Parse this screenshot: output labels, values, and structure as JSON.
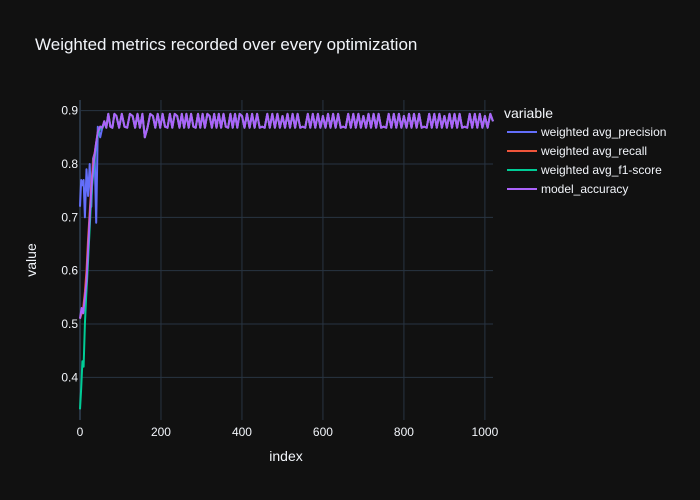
{
  "chart_data": {
    "type": "line",
    "title": "Weighted metrics recorded over every optimization",
    "xlabel": "index",
    "ylabel": "value",
    "xlim": [
      0,
      1020
    ],
    "ylim": [
      0.32,
      0.92
    ],
    "xticks": [
      0,
      200,
      400,
      600,
      800,
      1000
    ],
    "yticks": [
      0.4,
      0.5,
      0.6,
      0.7,
      0.8,
      0.9
    ],
    "grid": true,
    "legend": {
      "title": "variable",
      "position": "top-right (outside plot)"
    },
    "series": [
      {
        "name": "weighted avg_precision",
        "color": "#636efa",
        "points": [
          [
            0,
            0.72
          ],
          [
            3,
            0.77
          ],
          [
            6,
            0.76
          ],
          [
            9,
            0.77
          ],
          [
            12,
            0.7
          ],
          [
            16,
            0.79
          ],
          [
            20,
            0.74
          ],
          [
            24,
            0.8
          ],
          [
            28,
            0.72
          ],
          [
            32,
            0.81
          ],
          [
            36,
            0.82
          ],
          [
            40,
            0.69
          ],
          [
            44,
            0.87
          ],
          [
            50,
            0.85
          ],
          [
            60,
            0.88
          ],
          [
            75,
            0.87
          ],
          [
            90,
            0.89
          ],
          [
            110,
            0.87
          ],
          [
            130,
            0.89
          ],
          [
            160,
            0.85
          ],
          [
            180,
            0.89
          ],
          [
            210,
            0.87
          ],
          [
            240,
            0.89
          ],
          [
            280,
            0.87
          ],
          [
            320,
            0.89
          ],
          [
            360,
            0.87
          ],
          [
            400,
            0.89
          ],
          [
            450,
            0.87
          ],
          [
            500,
            0.89
          ],
          [
            550,
            0.87
          ],
          [
            600,
            0.89
          ],
          [
            650,
            0.87
          ],
          [
            700,
            0.89
          ],
          [
            750,
            0.87
          ],
          [
            800,
            0.89
          ],
          [
            850,
            0.87
          ],
          [
            900,
            0.89
          ],
          [
            950,
            0.87
          ],
          [
            1000,
            0.89
          ],
          [
            1020,
            0.88
          ]
        ]
      },
      {
        "name": "weighted avg_recall",
        "color": "#ef553b",
        "points": [
          [
            0,
            0.51
          ],
          [
            4,
            0.52
          ],
          [
            8,
            0.53
          ],
          [
            12,
            0.56
          ],
          [
            16,
            0.6
          ],
          [
            20,
            0.66
          ],
          [
            24,
            0.71
          ],
          [
            28,
            0.76
          ],
          [
            32,
            0.8
          ],
          [
            38,
            0.83
          ],
          [
            44,
            0.86
          ],
          [
            50,
            0.87
          ],
          [
            60,
            0.88
          ],
          [
            75,
            0.87
          ],
          [
            90,
            0.89
          ],
          [
            110,
            0.87
          ],
          [
            130,
            0.89
          ],
          [
            160,
            0.85
          ],
          [
            180,
            0.89
          ],
          [
            210,
            0.87
          ],
          [
            240,
            0.89
          ],
          [
            280,
            0.87
          ],
          [
            320,
            0.89
          ],
          [
            360,
            0.87
          ],
          [
            400,
            0.89
          ],
          [
            450,
            0.87
          ],
          [
            500,
            0.89
          ],
          [
            550,
            0.87
          ],
          [
            600,
            0.89
          ],
          [
            650,
            0.87
          ],
          [
            700,
            0.89
          ],
          [
            750,
            0.87
          ],
          [
            800,
            0.89
          ],
          [
            850,
            0.87
          ],
          [
            900,
            0.89
          ],
          [
            950,
            0.87
          ],
          [
            1000,
            0.89
          ],
          [
            1020,
            0.88
          ]
        ]
      },
      {
        "name": "weighted avg_f1-score",
        "color": "#00cc96",
        "points": [
          [
            0,
            0.34
          ],
          [
            3,
            0.38
          ],
          [
            6,
            0.43
          ],
          [
            9,
            0.42
          ],
          [
            12,
            0.5
          ],
          [
            15,
            0.55
          ],
          [
            18,
            0.59
          ],
          [
            22,
            0.65
          ],
          [
            26,
            0.71
          ],
          [
            30,
            0.76
          ],
          [
            35,
            0.8
          ],
          [
            40,
            0.84
          ],
          [
            46,
            0.86
          ],
          [
            52,
            0.87
          ],
          [
            60,
            0.88
          ],
          [
            75,
            0.87
          ],
          [
            90,
            0.89
          ],
          [
            110,
            0.87
          ],
          [
            130,
            0.89
          ],
          [
            160,
            0.85
          ],
          [
            180,
            0.89
          ],
          [
            210,
            0.87
          ],
          [
            240,
            0.89
          ],
          [
            280,
            0.87
          ],
          [
            320,
            0.89
          ],
          [
            360,
            0.87
          ],
          [
            400,
            0.89
          ],
          [
            450,
            0.87
          ],
          [
            500,
            0.89
          ],
          [
            550,
            0.87
          ],
          [
            600,
            0.89
          ],
          [
            650,
            0.87
          ],
          [
            700,
            0.89
          ],
          [
            750,
            0.87
          ],
          [
            800,
            0.89
          ],
          [
            850,
            0.87
          ],
          [
            900,
            0.89
          ],
          [
            950,
            0.87
          ],
          [
            1000,
            0.89
          ],
          [
            1020,
            0.88
          ]
        ]
      },
      {
        "name": "model_accuracy",
        "color": "#ab63fa",
        "points": [
          [
            0,
            0.51
          ],
          [
            4,
            0.53
          ],
          [
            8,
            0.52
          ],
          [
            12,
            0.55
          ],
          [
            16,
            0.58
          ],
          [
            20,
            0.64
          ],
          [
            24,
            0.7
          ],
          [
            28,
            0.75
          ],
          [
            32,
            0.79
          ],
          [
            38,
            0.83
          ],
          [
            44,
            0.86
          ],
          [
            50,
            0.87
          ],
          [
            60,
            0.88
          ],
          [
            75,
            0.87
          ],
          [
            90,
            0.89
          ],
          [
            110,
            0.87
          ],
          [
            130,
            0.89
          ],
          [
            160,
            0.85
          ],
          [
            180,
            0.89
          ],
          [
            210,
            0.87
          ],
          [
            240,
            0.89
          ],
          [
            280,
            0.87
          ],
          [
            320,
            0.89
          ],
          [
            360,
            0.87
          ],
          [
            400,
            0.89
          ],
          [
            450,
            0.87
          ],
          [
            500,
            0.89
          ],
          [
            550,
            0.87
          ],
          [
            600,
            0.89
          ],
          [
            650,
            0.87
          ],
          [
            700,
            0.89
          ],
          [
            750,
            0.87
          ],
          [
            800,
            0.89
          ],
          [
            850,
            0.87
          ],
          [
            900,
            0.89
          ],
          [
            950,
            0.87
          ],
          [
            1000,
            0.89
          ],
          [
            1020,
            0.88
          ]
        ]
      }
    ]
  }
}
